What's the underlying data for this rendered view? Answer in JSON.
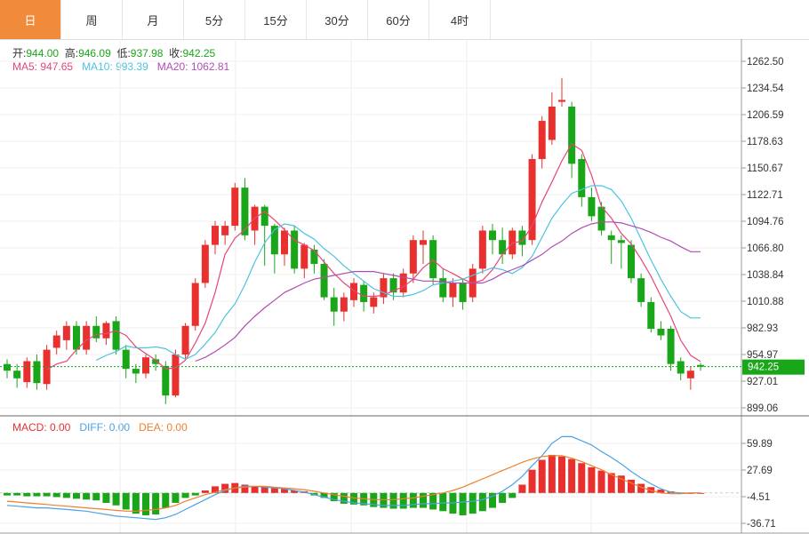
{
  "tabs": [
    "日",
    "周",
    "月",
    "5分",
    "15分",
    "30分",
    "60分",
    "4时"
  ],
  "active_tab": 0,
  "ohlc": {
    "open_label": "开:",
    "open": "944.00",
    "high_label": "高:",
    "high": "946.09",
    "low_label": "低:",
    "low": "937.98",
    "close_label": "收:",
    "close": "942.25"
  },
  "ma": {
    "ma5_label": "MA5: ",
    "ma5": "947.65",
    "ma10_label": "MA10: ",
    "ma10": "993.39",
    "ma20_label": "MA20: ",
    "ma20": "1062.81"
  },
  "macd": {
    "macd_label": "MACD: ",
    "macd": "0.00",
    "diff_label": "DIFF: ",
    "diff": "0.00",
    "dea_label": "DEA: ",
    "dea": "0.00"
  },
  "last_price": "942.25",
  "colors": {
    "up": "#e8312e",
    "down": "#19a619",
    "ma5": "#e8457a",
    "ma10": "#4dc3e0",
    "ma20": "#b14db3",
    "diff": "#4aa3e6",
    "dea": "#f07f2a",
    "tab_active": "#f08b3c",
    "price_tag": "#19a619"
  },
  "chart_data": [
    {
      "type": "candlestick",
      "price_axis": {
        "ticks": [
          "1262.50",
          "1234.54",
          "1206.59",
          "1178.63",
          "1150.67",
          "1122.71",
          "1094.76",
          "1066.80",
          "1038.84",
          "1010.88",
          "982.93",
          "954.97",
          "927.01",
          "899.06"
        ],
        "range": [
          899.06,
          1262.5
        ]
      },
      "last_price": 942.25,
      "candles": [
        [
          945,
          938,
          950,
          930
        ],
        [
          938,
          930,
          945,
          920
        ],
        [
          926,
          948,
          952,
          920
        ],
        [
          948,
          925,
          955,
          918
        ],
        [
          924,
          960,
          965,
          918
        ],
        [
          962,
          975,
          980,
          955
        ],
        [
          970,
          985,
          990,
          960
        ],
        [
          985,
          960,
          990,
          955
        ],
        [
          960,
          985,
          990,
          955
        ],
        [
          985,
          972,
          995,
          968
        ],
        [
          972,
          988,
          990,
          965
        ],
        [
          990,
          960,
          995,
          955
        ],
        [
          960,
          940,
          965,
          930
        ],
        [
          940,
          935,
          945,
          925
        ],
        [
          935,
          952,
          955,
          930
        ],
        [
          950,
          945,
          955,
          938
        ],
        [
          943,
          912,
          948,
          903
        ],
        [
          912,
          955,
          960,
          910
        ],
        [
          955,
          985,
          988,
          950
        ],
        [
          985,
          1030,
          1035,
          980
        ],
        [
          1030,
          1070,
          1075,
          1025
        ],
        [
          1070,
          1090,
          1095,
          1060
        ],
        [
          1080,
          1090,
          1095,
          1070
        ],
        [
          1090,
          1130,
          1135,
          1085
        ],
        [
          1130,
          1080,
          1140,
          1075
        ],
        [
          1085,
          1110,
          1112,
          1070
        ],
        [
          1110,
          1090,
          1112,
          1048
        ],
        [
          1090,
          1060,
          1092,
          1040
        ],
        [
          1060,
          1085,
          1088,
          1048
        ],
        [
          1085,
          1045,
          1090,
          1040
        ],
        [
          1045,
          1070,
          1072,
          1035
        ],
        [
          1065,
          1050,
          1070,
          1040
        ],
        [
          1050,
          1015,
          1055,
          1012
        ],
        [
          1015,
          1000,
          1025,
          985
        ],
        [
          1000,
          1015,
          1020,
          990
        ],
        [
          1012,
          1030,
          1035,
          1005
        ],
        [
          1028,
          1010,
          1032,
          1000
        ],
        [
          1005,
          1015,
          1020,
          998
        ],
        [
          1015,
          1035,
          1040,
          1008
        ],
        [
          1035,
          1020,
          1040,
          1012
        ],
        [
          1020,
          1040,
          1045,
          1015
        ],
        [
          1040,
          1075,
          1080,
          1030
        ],
        [
          1070,
          1075,
          1085,
          1050
        ],
        [
          1075,
          1035,
          1080,
          1028
        ],
        [
          1035,
          1015,
          1045,
          1010
        ],
        [
          1015,
          1030,
          1035,
          1005
        ],
        [
          1030,
          1010,
          1035,
          1002
        ],
        [
          1015,
          1045,
          1050,
          1010
        ],
        [
          1045,
          1085,
          1090,
          1040
        ],
        [
          1085,
          1075,
          1092,
          1060
        ],
        [
          1075,
          1060,
          1088,
          1050
        ],
        [
          1060,
          1085,
          1088,
          1055
        ],
        [
          1085,
          1070,
          1090,
          1058
        ],
        [
          1075,
          1160,
          1165,
          1070
        ],
        [
          1160,
          1200,
          1205,
          1150
        ],
        [
          1180,
          1215,
          1230,
          1175
        ],
        [
          1220,
          1222,
          1245,
          1215
        ],
        [
          1215,
          1155,
          1220,
          1140
        ],
        [
          1160,
          1120,
          1165,
          1110
        ],
        [
          1120,
          1100,
          1130,
          1095
        ],
        [
          1110,
          1085,
          1115,
          1080
        ],
        [
          1080,
          1075,
          1085,
          1050
        ],
        [
          1075,
          1072,
          1080,
          1045
        ],
        [
          1070,
          1035,
          1075,
          1030
        ],
        [
          1035,
          1010,
          1040,
          1005
        ],
        [
          1010,
          982,
          1015,
          978
        ],
        [
          982,
          975,
          990,
          970
        ],
        [
          982,
          945,
          985,
          938
        ],
        [
          948,
          935,
          952,
          928
        ],
        [
          930,
          938,
          942,
          918
        ],
        [
          944,
          942.25,
          946.09,
          937.98
        ]
      ],
      "ma5": [
        null,
        null,
        null,
        null,
        939,
        945,
        948,
        960,
        970,
        976,
        977,
        980,
        975,
        963,
        956,
        949,
        940,
        941,
        949,
        967,
        988,
        1020,
        1060,
        1077,
        1086,
        1098,
        1105,
        1096,
        1086,
        1075,
        1070,
        1064,
        1052,
        1040,
        1030,
        1022,
        1016,
        1016,
        1017,
        1022,
        1026,
        1034,
        1046,
        1054,
        1045,
        1040,
        1034,
        1030,
        1033,
        1044,
        1060,
        1072,
        1074,
        1090,
        1115,
        1136,
        1158,
        1176,
        1169,
        1143,
        1110,
        1098,
        1082,
        1071,
        1055,
        1037,
        1016,
        995,
        970,
        954,
        947.65
      ],
      "ma10": [
        null,
        null,
        null,
        null,
        null,
        null,
        null,
        null,
        null,
        949,
        954,
        958,
        964,
        962,
        962,
        963,
        961,
        955,
        950,
        955,
        966,
        978,
        995,
        1008,
        1028,
        1052,
        1072,
        1086,
        1092,
        1090,
        1082,
        1076,
        1066,
        1058,
        1048,
        1040,
        1032,
        1024,
        1020,
        1016,
        1016,
        1018,
        1022,
        1028,
        1030,
        1032,
        1034,
        1038,
        1042,
        1046,
        1044,
        1040,
        1046,
        1058,
        1078,
        1098,
        1112,
        1124,
        1128,
        1132,
        1132,
        1128,
        1116,
        1098,
        1076,
        1054,
        1034,
        1016,
        1000,
        993.39,
        993.39
      ],
      "ma20": [
        null,
        null,
        null,
        null,
        null,
        null,
        null,
        null,
        null,
        null,
        null,
        null,
        null,
        null,
        null,
        null,
        null,
        null,
        null,
        948,
        952,
        958,
        965,
        973,
        985,
        995,
        1004,
        1012,
        1020,
        1025,
        1030,
        1034,
        1036,
        1038,
        1040,
        1042,
        1042,
        1042,
        1040,
        1038,
        1036,
        1034,
        1032,
        1032,
        1031,
        1030,
        1030,
        1030,
        1030,
        1034,
        1040,
        1044,
        1048,
        1054,
        1060,
        1068,
        1074,
        1082,
        1088,
        1092,
        1094,
        1094,
        1093,
        1090,
        1087,
        1083,
        1078,
        1074,
        1068,
        1062.81,
        1062.81
      ]
    },
    {
      "type": "bar",
      "series_name": "MACD",
      "axis": {
        "ticks": [
          "59.89",
          "27.69",
          "-4.51",
          "-36.71"
        ],
        "range": [
          -36.71,
          59.89
        ]
      },
      "macd": [
        -3,
        -3,
        -4,
        -4,
        -4,
        -5,
        -6,
        -7,
        -8,
        -9,
        -12,
        -15,
        -20,
        -25,
        -27,
        -26,
        -18,
        -12,
        -6,
        -3,
        3,
        8,
        11,
        12,
        10,
        8,
        7,
        6,
        5,
        3,
        2,
        -3,
        -6,
        -10,
        -13,
        -14,
        -15,
        -17,
        -18,
        -19,
        -19,
        -18,
        -18,
        -20,
        -22,
        -25,
        -27,
        -25,
        -22,
        -18,
        -12,
        -6,
        10,
        28,
        40,
        46,
        44,
        41,
        36,
        31,
        27,
        24,
        21,
        16,
        11,
        7,
        4,
        2,
        0,
        0,
        0
      ],
      "diff": [
        -15,
        -16,
        -17,
        -18,
        -18,
        -19,
        -20,
        -21,
        -22,
        -24,
        -26,
        -28,
        -29,
        -30,
        -31,
        -32,
        -30,
        -26,
        -20,
        -14,
        -8,
        -2,
        3,
        6,
        8,
        8,
        7,
        6,
        5,
        3,
        1,
        -2,
        -5,
        -8,
        -10,
        -12,
        -13,
        -14,
        -15,
        -15,
        -15,
        -14,
        -13,
        -13,
        -12,
        -12,
        -11,
        -10,
        -8,
        -4,
        2,
        10,
        20,
        33,
        45,
        60,
        68,
        68,
        63,
        58,
        50,
        43,
        35,
        26,
        18,
        11,
        5,
        1,
        0,
        0,
        0
      ],
      "dea": [
        -10,
        -11,
        -12,
        -13,
        -14,
        -15,
        -16,
        -17,
        -18,
        -19,
        -20,
        -21,
        -22,
        -22,
        -21,
        -20,
        -18,
        -15,
        -10,
        -6,
        -2,
        1,
        4,
        6,
        7,
        8,
        8,
        7,
        6,
        5,
        4,
        2,
        0,
        -2,
        -4,
        -6,
        -7,
        -8,
        -8,
        -8,
        -7,
        -6,
        -4,
        -2,
        0,
        3,
        7,
        12,
        17,
        22,
        27,
        32,
        37,
        41,
        44,
        45,
        45,
        42,
        38,
        33,
        28,
        22,
        17,
        12,
        7,
        3,
        0,
        -1,
        -1,
        0,
        0
      ]
    }
  ]
}
